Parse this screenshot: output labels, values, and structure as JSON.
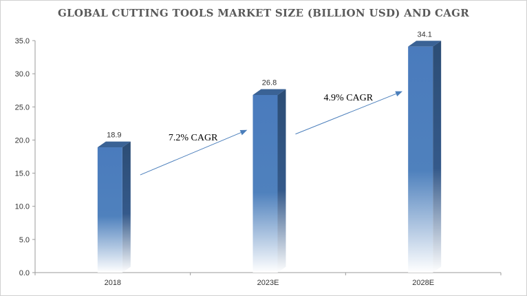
{
  "chart_data": {
    "type": "bar",
    "title": "GLOBAL CUTTING TOOLS MARKET SIZE (BILLION USD) AND CAGR",
    "categories": [
      "2018",
      "2023E",
      "2028E"
    ],
    "values": [
      18.9,
      26.8,
      34.1
    ],
    "data_labels": [
      "18.9",
      "26.8",
      "34.1"
    ],
    "xlabel": "",
    "ylabel": "",
    "ylim": [
      0,
      35
    ],
    "yticks": [
      "0.0",
      "5.0",
      "10.0",
      "15.0",
      "20.0",
      "25.0",
      "30.0",
      "35.0"
    ],
    "yticks_values": [
      0,
      5,
      10,
      15,
      20,
      25,
      30,
      35
    ],
    "annotations": [
      {
        "text": "7.2% CAGR",
        "from_category": "2018",
        "to_category": "2023E"
      },
      {
        "text": "4.9% CAGR",
        "from_category": "2023E",
        "to_category": "2028E"
      }
    ],
    "grid": false,
    "bar_color": "#4f81bd",
    "bar_side_color": "#2c4d75",
    "bar_top_color": "#3a6295",
    "arrow_color": "#4a7ebb"
  }
}
